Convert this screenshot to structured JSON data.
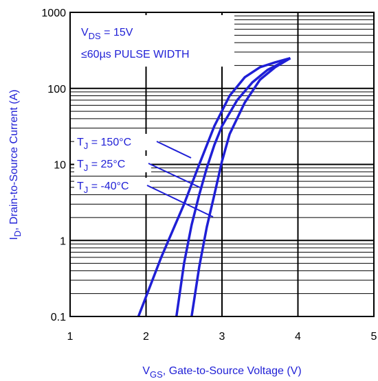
{
  "chart_data": {
    "type": "line",
    "title": "",
    "xlabel": {
      "main": "V",
      "sub": "GS",
      "rest": ", Gate-to-Source Voltage (V)"
    },
    "ylabel": {
      "main": "I",
      "sub": "D",
      "rest": ", Drain-to-Source Current  (A)"
    },
    "xlim": [
      1,
      5
    ],
    "ylim": [
      0.1,
      1000
    ],
    "yscale": "log",
    "grid": true,
    "x_ticks": [
      "1",
      "2",
      "3",
      "4",
      "5"
    ],
    "y_ticks": [
      "0.1",
      "1",
      "10",
      "100",
      "1000"
    ],
    "conditions": [
      {
        "main": "V",
        "sub": "DS",
        "rest": " = 15V"
      },
      {
        "main": "≤60µs PULSE WIDTH",
        "sub": "",
        "rest": ""
      }
    ],
    "series": [
      {
        "name": {
          "main": "T",
          "sub": "J",
          "rest": " = 150°C"
        },
        "x": [
          1.9,
          2.2,
          2.5,
          2.7,
          2.9,
          3.1,
          3.3,
          3.5,
          3.7,
          3.9
        ],
        "y": [
          0.1,
          0.6,
          3,
          10,
          32,
          80,
          140,
          190,
          220,
          250
        ]
      },
      {
        "name": {
          "main": "T",
          "sub": "J",
          "rest": " = 25°C"
        },
        "x": [
          2.4,
          2.5,
          2.6,
          2.7,
          2.8,
          2.9,
          3.0,
          3.2,
          3.4,
          3.6,
          3.9
        ],
        "y": [
          0.1,
          0.5,
          1.6,
          4,
          9,
          18,
          32,
          70,
          120,
          175,
          250
        ]
      },
      {
        "name": {
          "main": "T",
          "sub": "J",
          "rest": " = -40°C"
        },
        "x": [
          2.6,
          2.7,
          2.8,
          2.9,
          3.0,
          3.1,
          3.3,
          3.5,
          3.7,
          3.9
        ],
        "y": [
          0.1,
          0.45,
          1.5,
          4,
          11,
          25,
          65,
          130,
          190,
          250
        ]
      }
    ]
  }
}
